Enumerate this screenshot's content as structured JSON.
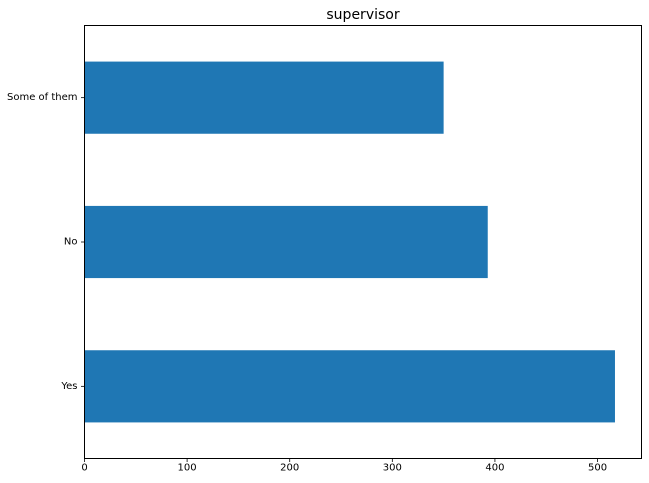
{
  "chart_data": {
    "type": "bar",
    "orientation": "horizontal",
    "title": "supervisor",
    "xlabel": "",
    "ylabel": "",
    "categories": [
      "Yes",
      "No",
      "Some of them"
    ],
    "values": [
      517,
      393,
      350
    ],
    "xlim": [
      0,
      542.85
    ],
    "xticks": [
      0,
      100,
      200,
      300,
      400,
      500
    ],
    "grid": false,
    "legend": "none",
    "bar_color": "#1f77b4"
  }
}
